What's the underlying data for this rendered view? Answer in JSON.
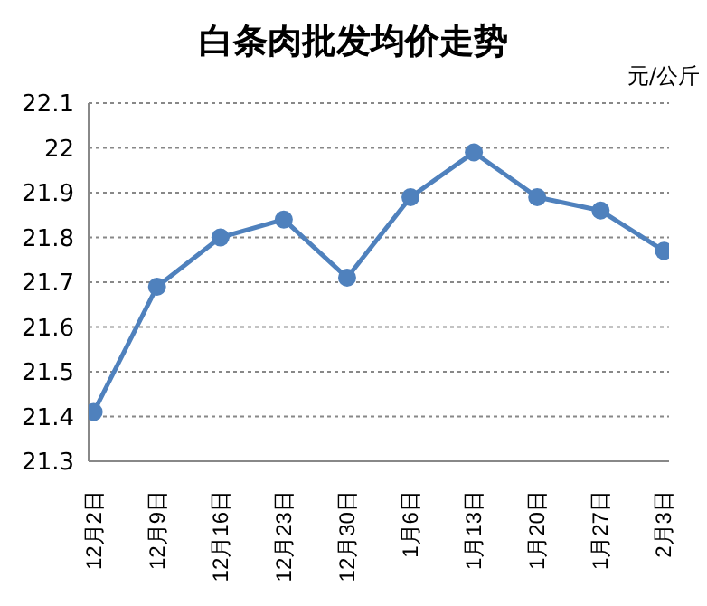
{
  "chart_data": {
    "type": "line",
    "title": "白条肉批发均价走势",
    "annotations": [
      "元/公斤"
    ],
    "categories": [
      "12月2日",
      "12月9日",
      "12月16日",
      "12月23日",
      "12月30日",
      "1月6日",
      "1月13日",
      "1月20日",
      "1月27日",
      "2月3日"
    ],
    "series": [
      {
        "color": "#4f81bd",
        "values": [
          21.41,
          21.69,
          21.8,
          21.84,
          21.71,
          21.89,
          21.99,
          21.89,
          21.86,
          21.77
        ]
      }
    ],
    "ylim": [
      21.3,
      22.1
    ],
    "yticks": [
      21.3,
      21.4,
      21.5,
      21.6,
      21.7,
      21.8,
      21.9,
      22,
      22.1
    ],
    "grid": "y",
    "marker": "circle",
    "line_style": "solid"
  }
}
